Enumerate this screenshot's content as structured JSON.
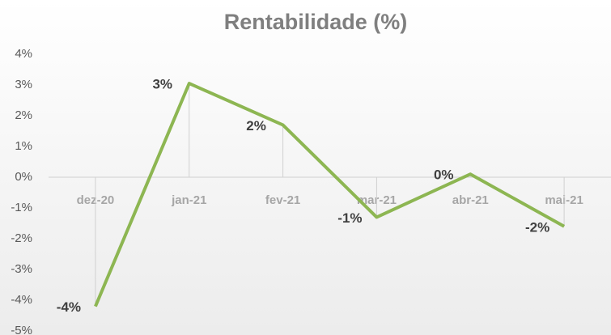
{
  "chart_data": {
    "type": "line",
    "title": "Rentabilidade  (%)",
    "categories": [
      "dez-20",
      "jan-21",
      "fev-21",
      "mar-21",
      "abr-21",
      "mai-21"
    ],
    "series": [
      {
        "name": "Rentabilidade",
        "color": "#8db652",
        "values": [
          -4.2,
          3.05,
          1.7,
          -1.3,
          0.1,
          -1.6
        ],
        "value_labels": [
          "-4%",
          "3%",
          "2%",
          "-1%",
          "0%",
          "-2%"
        ]
      }
    ],
    "ylim": [
      -5,
      4
    ],
    "yticks": [
      {
        "value": 4,
        "label": "4%"
      },
      {
        "value": 3,
        "label": "3%"
      },
      {
        "value": 2,
        "label": "2%"
      },
      {
        "value": 1,
        "label": "1%"
      },
      {
        "value": 0,
        "label": "0%"
      },
      {
        "value": -1,
        "label": "-1%"
      },
      {
        "value": -2,
        "label": "-2%"
      },
      {
        "value": -3,
        "label": "-3%"
      },
      {
        "value": -4,
        "label": "-4%"
      },
      {
        "value": -5,
        "label": "-5%"
      }
    ],
    "grid": false,
    "drop_lines": true
  }
}
